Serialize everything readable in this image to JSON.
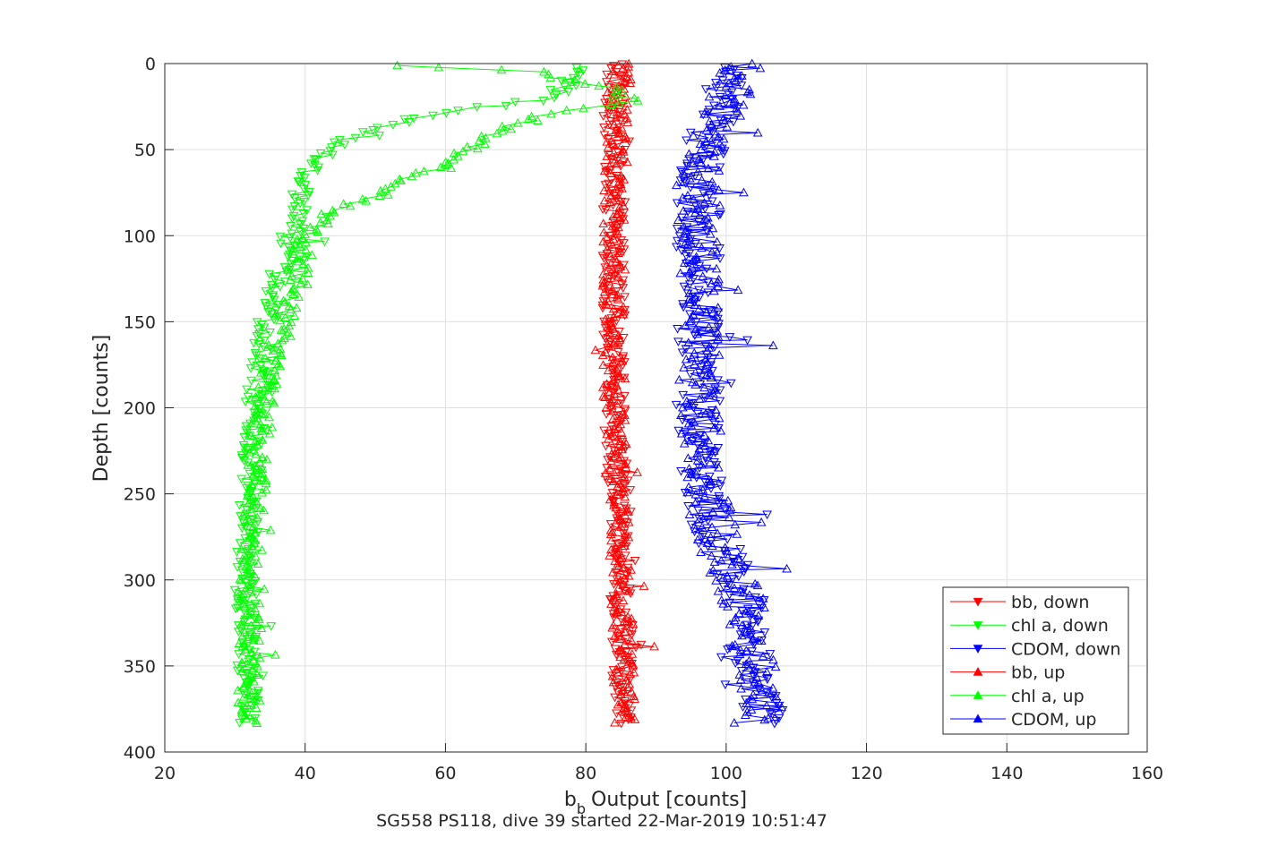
{
  "chart_data": {
    "type": "line",
    "xlabel": "Output [counts]",
    "xlabel_prefix": "b",
    "xlabel_subscript": "b",
    "ylabel": "Depth [counts]",
    "caption": "SG558 PS118, dive 39 started 22-Mar-2019 10:51:47",
    "xlim": [
      20,
      160
    ],
    "ylim": [
      0,
      400
    ],
    "y_reversed": true,
    "grid": true,
    "legend_position": "bottom-right",
    "x_ticks": [
      20,
      40,
      60,
      80,
      100,
      120,
      140,
      160
    ],
    "y_ticks": [
      0,
      50,
      100,
      150,
      200,
      250,
      300,
      350,
      400
    ],
    "series": [
      {
        "name": "bb, down",
        "color": "#ff0000",
        "marker": "triangle-down",
        "profile": [
          [
            0,
            84.5
          ],
          [
            30,
            84
          ],
          [
            100,
            84
          ],
          [
            200,
            84
          ],
          [
            300,
            85
          ],
          [
            383,
            85.5
          ]
        ],
        "noise": 1.0
      },
      {
        "name": "chl a, down",
        "color": "#00ff00",
        "marker": "triangle-down",
        "profile": [
          [
            2,
            80
          ],
          [
            20,
            75
          ],
          [
            28,
            60
          ],
          [
            40,
            48
          ],
          [
            55,
            42
          ],
          [
            80,
            39
          ],
          [
            100,
            38
          ],
          [
            130,
            35.5
          ],
          [
            160,
            34
          ],
          [
            200,
            33
          ],
          [
            250,
            32
          ],
          [
            300,
            31.5
          ],
          [
            383,
            32
          ]
        ],
        "noise": 1.0
      },
      {
        "name": "CDOM, down",
        "color": "#0000ff",
        "marker": "triangle-down",
        "profile": [
          [
            2,
            100
          ],
          [
            20,
            100
          ],
          [
            40,
            97
          ],
          [
            80,
            96
          ],
          [
            150,
            96
          ],
          [
            200,
            96
          ],
          [
            250,
            97
          ],
          [
            280,
            99
          ],
          [
            300,
            102
          ],
          [
            330,
            103
          ],
          [
            360,
            104
          ],
          [
            383,
            106
          ]
        ],
        "noise": 2.0
      },
      {
        "name": "bb, up",
        "color": "#ff0000",
        "marker": "triangle-up",
        "profile": [
          [
            383,
            85.5
          ],
          [
            300,
            85
          ],
          [
            200,
            84
          ],
          [
            100,
            84
          ],
          [
            30,
            84.5
          ],
          [
            0,
            85
          ]
        ],
        "noise": 1.0
      },
      {
        "name": "chl a, up",
        "color": "#00ff00",
        "marker": "triangle-up",
        "profile": [
          [
            383,
            32
          ],
          [
            300,
            32
          ],
          [
            250,
            33
          ],
          [
            200,
            34
          ],
          [
            150,
            37
          ],
          [
            120,
            39
          ],
          [
            100,
            40
          ],
          [
            85,
            44
          ],
          [
            75,
            51
          ],
          [
            60,
            58
          ],
          [
            50,
            63
          ],
          [
            40,
            67
          ],
          [
            30,
            74
          ],
          [
            22,
            86
          ],
          [
            15,
            84
          ],
          [
            5,
            72
          ],
          [
            1,
            54
          ]
        ],
        "noise": 1.0
      },
      {
        "name": "CDOM, up",
        "color": "#0000ff",
        "marker": "triangle-up",
        "profile": [
          [
            383,
            104
          ],
          [
            350,
            104
          ],
          [
            320,
            103
          ],
          [
            300,
            101
          ],
          [
            280,
            99
          ],
          [
            250,
            97
          ],
          [
            200,
            96
          ],
          [
            150,
            96
          ],
          [
            100,
            96
          ],
          [
            60,
            96
          ],
          [
            40,
            98
          ],
          [
            20,
            100
          ],
          [
            0,
            103
          ]
        ],
        "noise": 2.0
      }
    ]
  }
}
